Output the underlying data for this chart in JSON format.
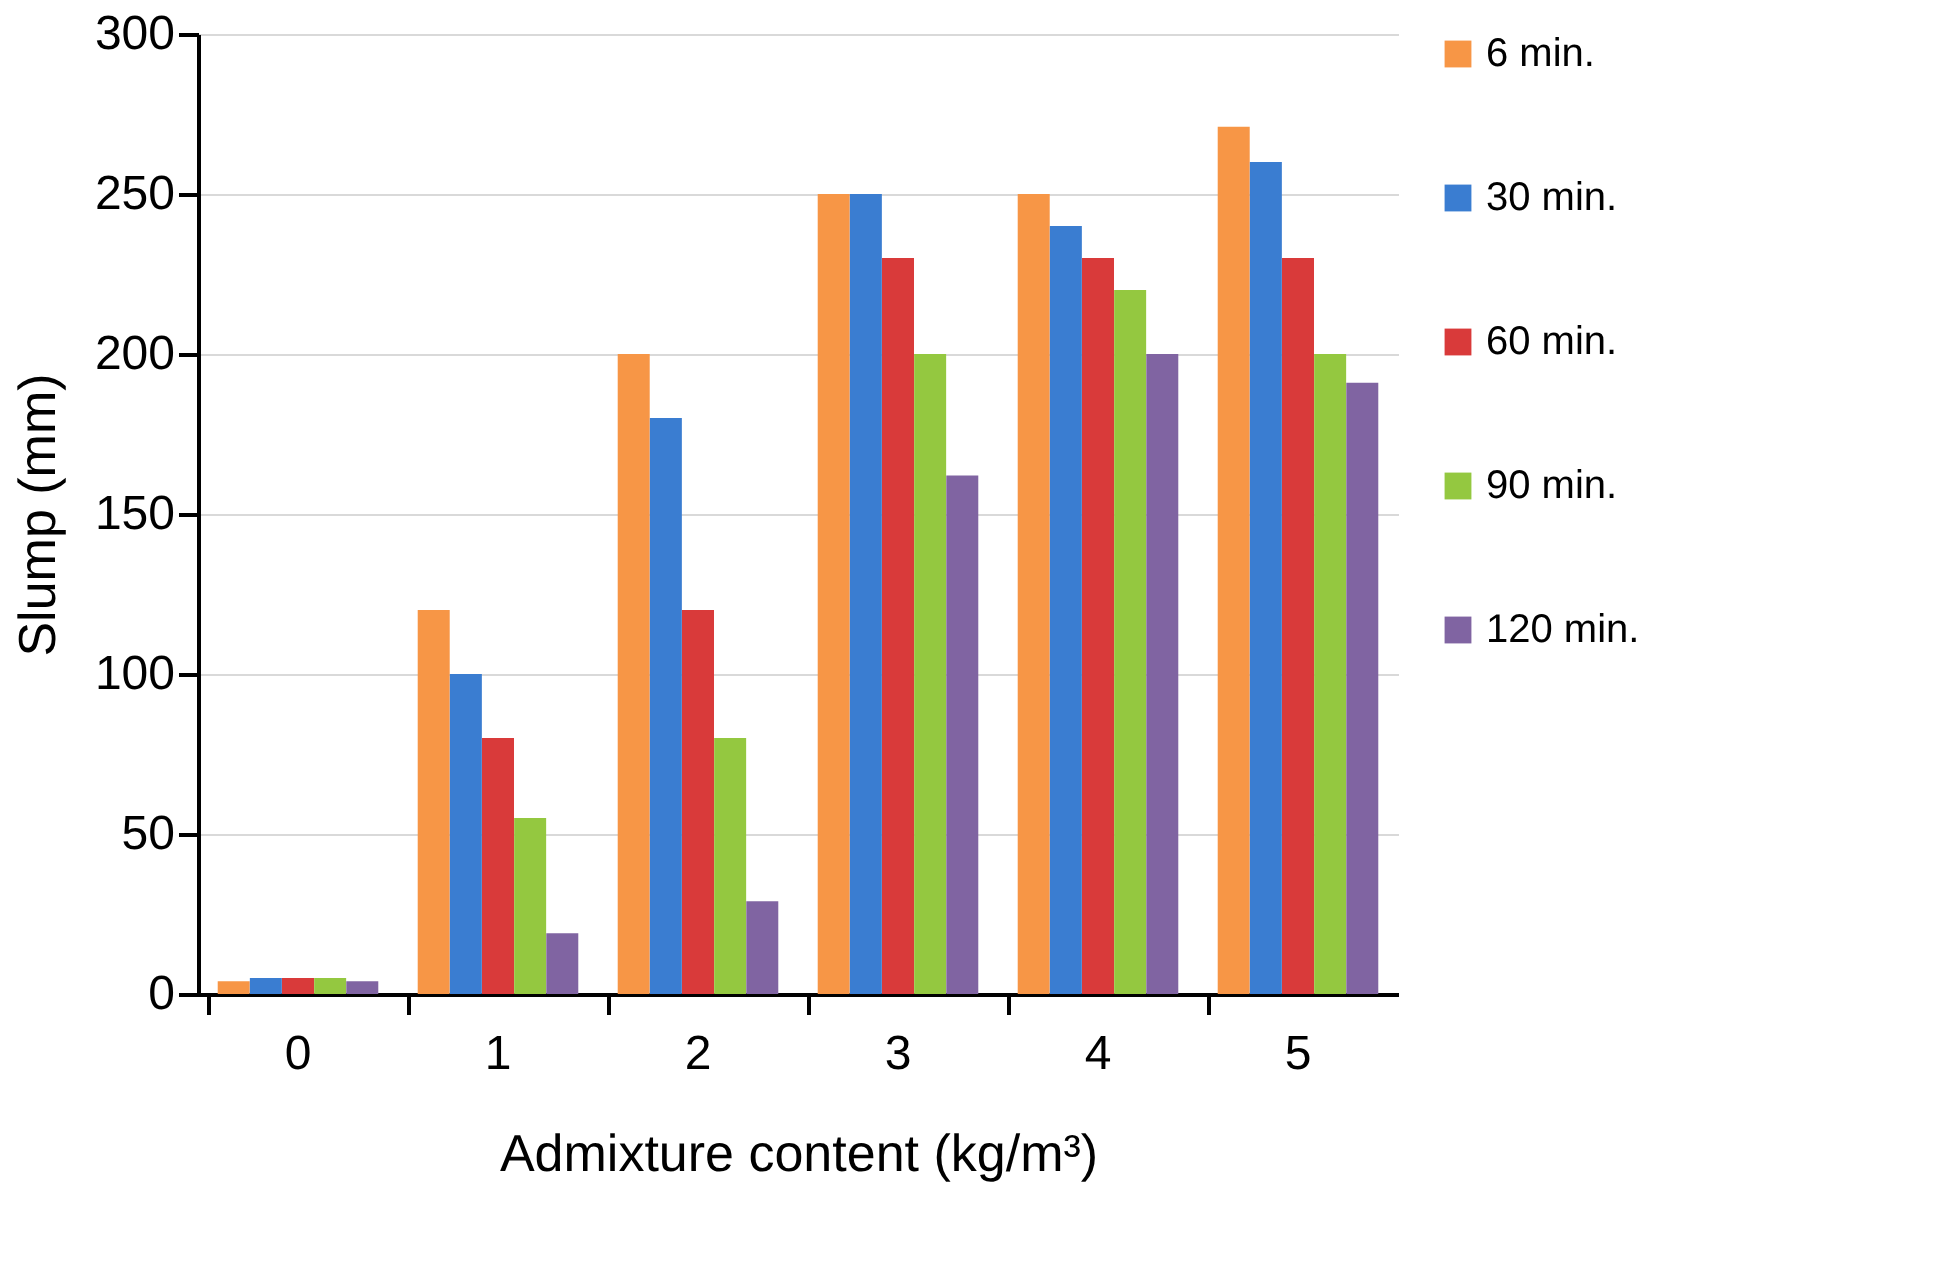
{
  "chart_data": {
    "type": "bar",
    "xlabel": "Admixture content (kg/m³)",
    "ylabel": "Slump (mm)",
    "categories": [
      "0",
      "1",
      "2",
      "3",
      "4",
      "5"
    ],
    "series": [
      {
        "name": "6 min.",
        "color": "#f79646",
        "values": [
          4,
          120,
          200,
          250,
          250,
          271
        ]
      },
      {
        "name": "30 min.",
        "color": "#3a7dd1",
        "values": [
          5,
          100,
          180,
          250,
          240,
          260
        ]
      },
      {
        "name": "60 min.",
        "color": "#d93a3a",
        "values": [
          5,
          80,
          120,
          230,
          230,
          230
        ]
      },
      {
        "name": "90 min.",
        "color": "#94c840",
        "values": [
          5,
          55,
          80,
          200,
          220,
          200
        ]
      },
      {
        "name": "120 min.",
        "color": "#8064a2",
        "values": [
          4,
          19,
          29,
          162,
          200,
          191
        ]
      }
    ],
    "ylim": [
      0,
      300
    ],
    "yticks": [
      0,
      50,
      100,
      150,
      200,
      250,
      300
    ],
    "grid": "y",
    "legend": "right"
  }
}
